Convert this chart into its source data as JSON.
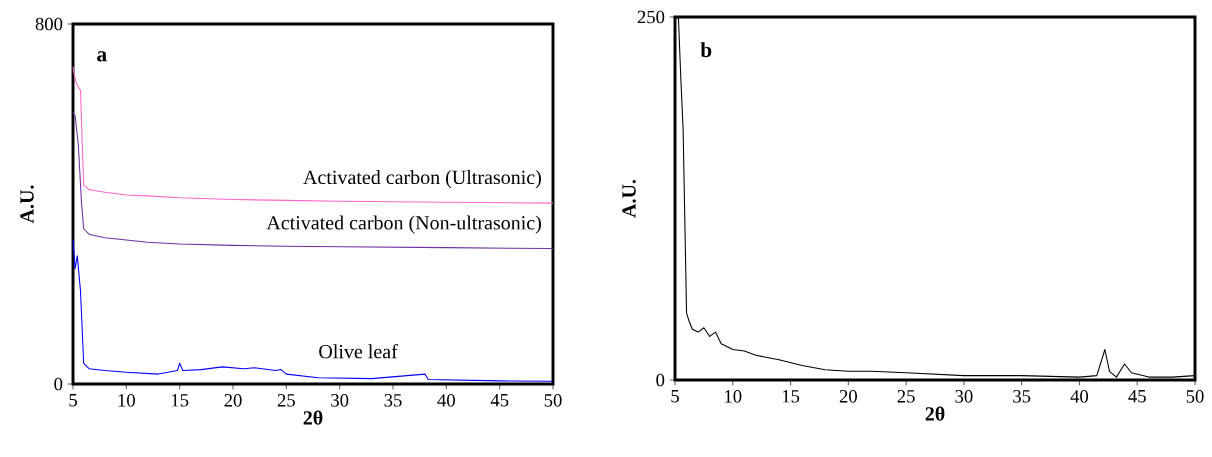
{
  "chart_data": [
    {
      "type": "line",
      "xlabel": "2θ",
      "ylabel": "A.U.",
      "annotations": [
        "a"
      ],
      "xlim": [
        5,
        50
      ],
      "ylim": [
        0,
        800
      ],
      "xticks": [
        5,
        10,
        15,
        20,
        25,
        30,
        35,
        40,
        45,
        50
      ],
      "yticks": [
        0,
        800
      ],
      "series": [
        {
          "name": "Activated carbon (Ultrasonic)",
          "color": "#ff66cc",
          "x": [
            5,
            5.1,
            5.3,
            5.5,
            5.7,
            6,
            6.5,
            7,
            8,
            10,
            12,
            15,
            20,
            25,
            30,
            40,
            50
          ],
          "values": [
            705,
            690,
            669,
            660,
            653,
            442,
            432,
            430,
            426,
            420,
            418,
            414,
            410,
            408,
            406,
            404,
            402
          ]
        },
        {
          "name": "Activated carbon (Non-ultrasonic)",
          "color": "#7030a0",
          "x": [
            5,
            5.2,
            5.5,
            5.8,
            6,
            6.5,
            7,
            8,
            10,
            12,
            15,
            20,
            25,
            30,
            40,
            50
          ],
          "values": [
            604,
            596,
            531,
            402,
            345,
            333,
            330,
            325,
            320,
            315,
            311,
            308,
            306,
            305,
            303,
            301
          ]
        },
        {
          "name": "Olive leaf",
          "color": "#0000ff",
          "x": [
            5,
            5.2,
            5.4,
            5.7,
            6,
            6.5,
            8,
            10,
            13,
            14.8,
            15,
            15.3,
            17,
            19,
            21,
            22,
            24,
            24.5,
            25,
            28,
            33,
            38,
            38.3,
            45,
            50
          ],
          "values": [
            321,
            256,
            285,
            208,
            46,
            34,
            30,
            26,
            22,
            30,
            46,
            30,
            32,
            38,
            34,
            36,
            30,
            32,
            22,
            14,
            12,
            22,
            10,
            7,
            6
          ]
        }
      ]
    },
    {
      "type": "line",
      "xlabel": "2θ",
      "ylabel": "A.U.",
      "annotations": [
        "b"
      ],
      "xlim": [
        5,
        50
      ],
      "ylim": [
        0,
        250
      ],
      "xticks": [
        5,
        10,
        15,
        20,
        25,
        30,
        35,
        40,
        45,
        50
      ],
      "yticks": [
        0,
        250
      ],
      "series": [
        {
          "color": "#000000",
          "x": [
            5.1,
            5.3,
            5.5,
            5.7,
            6,
            6.2,
            6.5,
            7,
            7.5,
            8,
            8.5,
            9,
            10,
            11,
            12,
            14,
            16,
            18,
            20,
            22,
            25,
            30,
            35,
            40,
            41.5,
            42.2,
            42.6,
            43.2,
            43.9,
            44.5,
            46,
            48,
            50
          ],
          "values": [
            250,
            249,
            208,
            173,
            46,
            41,
            35,
            33,
            36,
            30,
            33,
            25,
            21,
            20,
            17,
            14,
            10,
            7,
            6,
            6,
            5,
            3,
            3,
            2,
            3,
            21,
            6,
            2,
            11,
            5,
            2,
            2,
            3
          ]
        }
      ]
    }
  ]
}
